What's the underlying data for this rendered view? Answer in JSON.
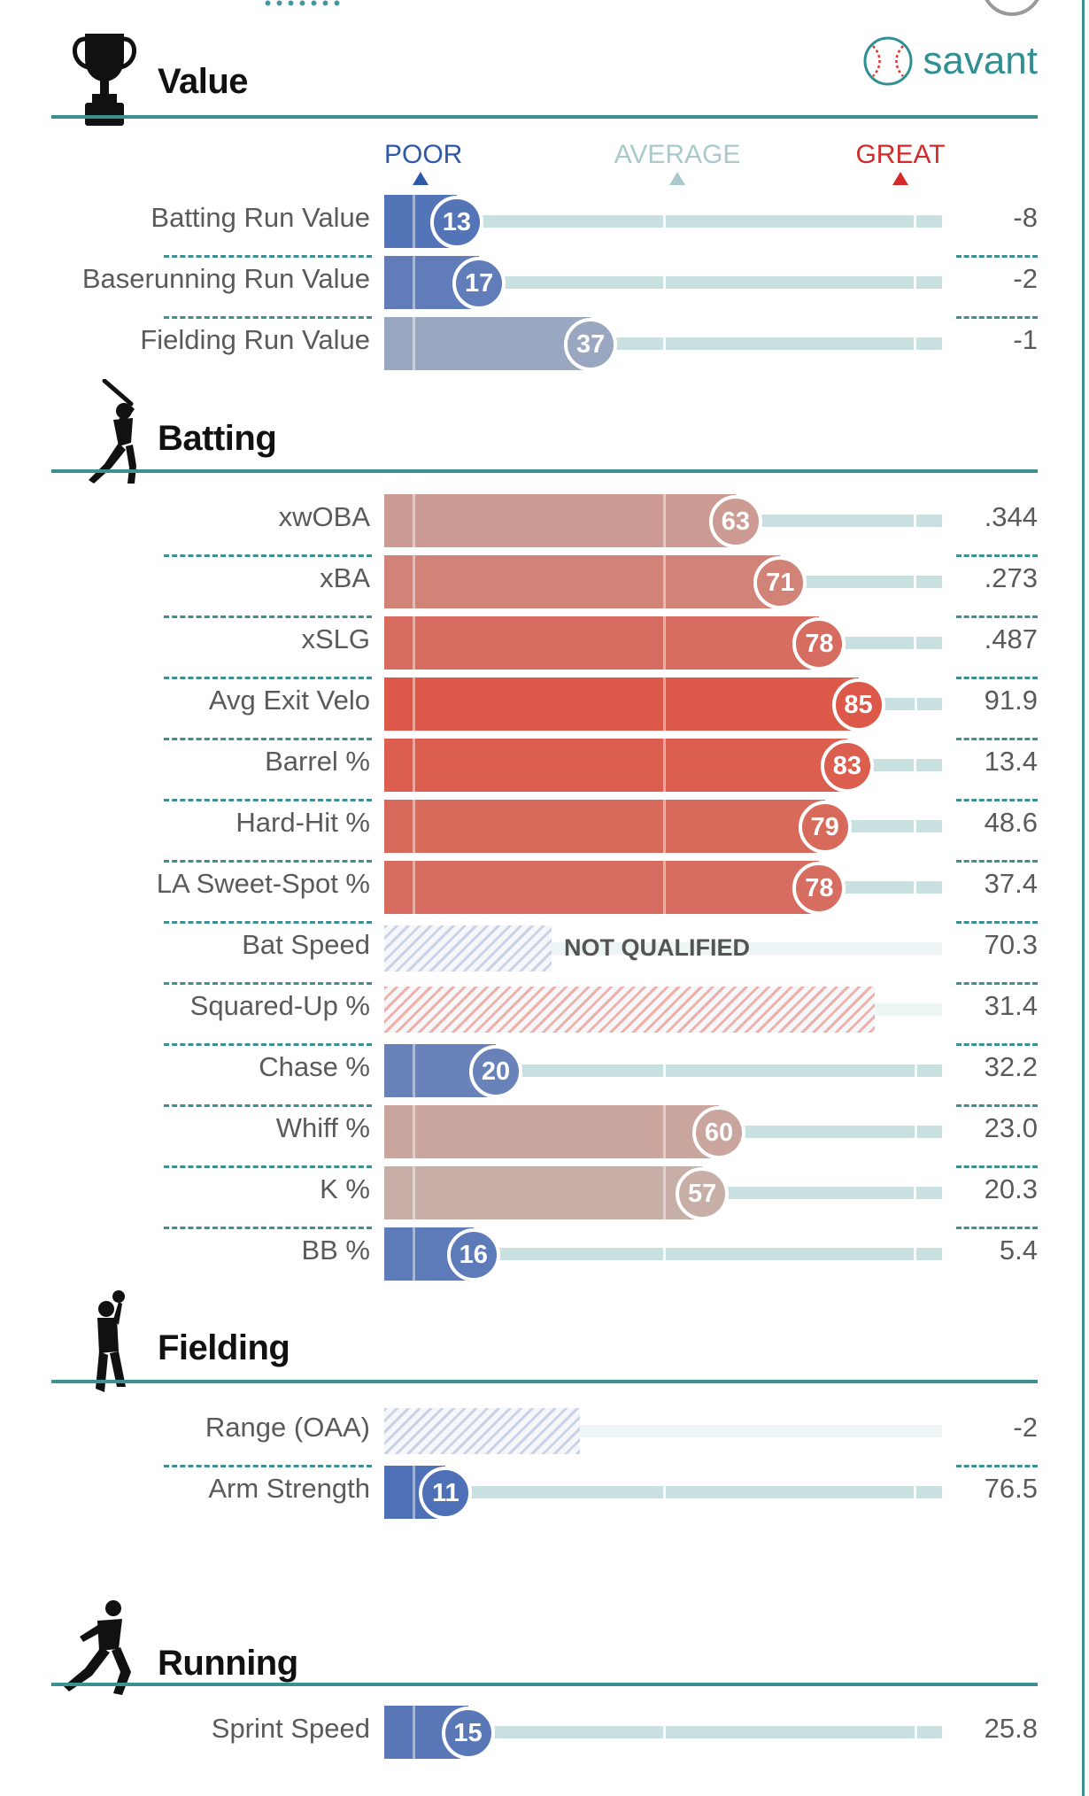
{
  "brand": {
    "savant_label": "savant"
  },
  "legend": {
    "poor": "POOR",
    "average": "AVERAGE",
    "great": "GREAT"
  },
  "colors": {
    "accent": "#3e8f92",
    "poor": "#2f59a8",
    "average": "#a9c9cc",
    "great": "#d32a2a"
  },
  "sections": {
    "value": {
      "title": "Value",
      "icon": "trophy-icon",
      "rows": [
        {
          "label": "Batting Run Value",
          "percentile": 13,
          "value": "-8"
        },
        {
          "label": "Baserunning Run Value",
          "percentile": 17,
          "value": "-2"
        },
        {
          "label": "Fielding Run Value",
          "percentile": 37,
          "value": "-1"
        }
      ]
    },
    "batting": {
      "title": "Batting",
      "icon": "batter-icon",
      "rows": [
        {
          "label": "xwOBA",
          "percentile": 63,
          "value": ".344"
        },
        {
          "label": "xBA",
          "percentile": 71,
          "value": ".273"
        },
        {
          "label": "xSLG",
          "percentile": 78,
          "value": ".487"
        },
        {
          "label": "Avg Exit Velo",
          "percentile": 85,
          "value": "91.9"
        },
        {
          "label": "Barrel %",
          "percentile": 83,
          "value": "13.4"
        },
        {
          "label": "Hard-Hit %",
          "percentile": 79,
          "value": "48.6"
        },
        {
          "label": "LA Sweet-Spot %",
          "percentile": 78,
          "value": "37.4"
        },
        {
          "label": "Bat Speed",
          "percentile": null,
          "status": "NOT QUALIFIED",
          "hatch_level": 0.3,
          "value": "70.3"
        },
        {
          "label": "Squared-Up %",
          "percentile": null,
          "hatch_level": 0.88,
          "value": "31.4"
        },
        {
          "label": "Chase %",
          "percentile": 20,
          "value": "32.2"
        },
        {
          "label": "Whiff %",
          "percentile": 60,
          "value": "23.0"
        },
        {
          "label": "K %",
          "percentile": 57,
          "value": "20.3"
        },
        {
          "label": "BB %",
          "percentile": 16,
          "value": "5.4"
        }
      ]
    },
    "fielding": {
      "title": "Fielding",
      "icon": "fielder-icon",
      "rows": [
        {
          "label": "Range (OAA)",
          "percentile": null,
          "hatch_level": 0.35,
          "value": "-2"
        },
        {
          "label": "Arm Strength",
          "percentile": 11,
          "value": "76.5"
        }
      ]
    },
    "running": {
      "title": "Running",
      "icon": "runner-icon",
      "rows": [
        {
          "label": "Sprint Speed",
          "percentile": 15,
          "value": "25.8"
        }
      ]
    }
  }
}
